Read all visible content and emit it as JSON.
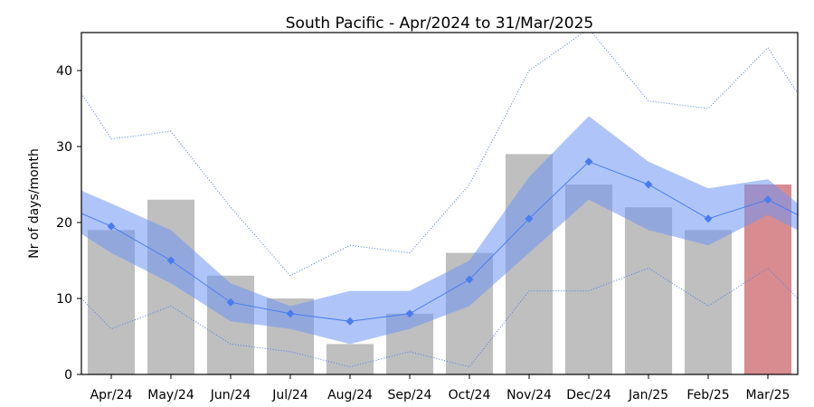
{
  "chart_data": {
    "type": "bar",
    "title": "South Pacific - Apr/2024 to 31/Mar/2025",
    "xlabel": "",
    "ylabel": "Nr of days/month",
    "categories": [
      "Apr/24",
      "May/24",
      "Jun/24",
      "Jul/24",
      "Aug/24",
      "Sep/24",
      "Oct/24",
      "Nov/24",
      "Dec/24",
      "Jan/25",
      "Feb/25",
      "Mar/25"
    ],
    "ylim": [
      0,
      45
    ],
    "yticks": [
      0,
      10,
      20,
      30,
      40
    ],
    "grid": false,
    "series": [
      {
        "kind": "bar",
        "values": [
          19,
          23,
          13,
          10,
          4,
          8,
          16,
          29,
          25,
          22,
          19,
          25
        ],
        "color": "#bfbfbf",
        "highlight_index": 11,
        "highlight_color": "#d98c8f"
      },
      {
        "kind": "line",
        "values": [
          19.5,
          15,
          9.5,
          8,
          7,
          8,
          12.5,
          20.5,
          28,
          25,
          20.5,
          23
        ],
        "color": "#4a7cf0",
        "edge": {
          "start": 21.2,
          "end": 21.0
        }
      },
      {
        "kind": "band",
        "lower": [
          16,
          12,
          7,
          6,
          4,
          6,
          9,
          16,
          23,
          19,
          17,
          21
        ],
        "upper": [
          22.5,
          19,
          12,
          9,
          11,
          11,
          15,
          26,
          34,
          28,
          24.5,
          25.7
        ],
        "color": "#6e96f5",
        "edge": {
          "start": [
            18.5,
            24.2
          ],
          "end": [
            19,
            22.5
          ]
        }
      },
      {
        "kind": "dotted",
        "values": [
          31,
          32,
          22,
          13,
          17,
          16,
          25,
          40,
          45.5,
          36,
          35,
          43
        ],
        "color": "#4a7cf0",
        "edge": {
          "start": 37,
          "end": 37
        }
      },
      {
        "kind": "dotted",
        "values": [
          6,
          9,
          4,
          3,
          1,
          3,
          1,
          11,
          11,
          14,
          9,
          14
        ],
        "color": "#4a7cf0",
        "edge": {
          "start": 10,
          "end": 10
        }
      }
    ]
  }
}
